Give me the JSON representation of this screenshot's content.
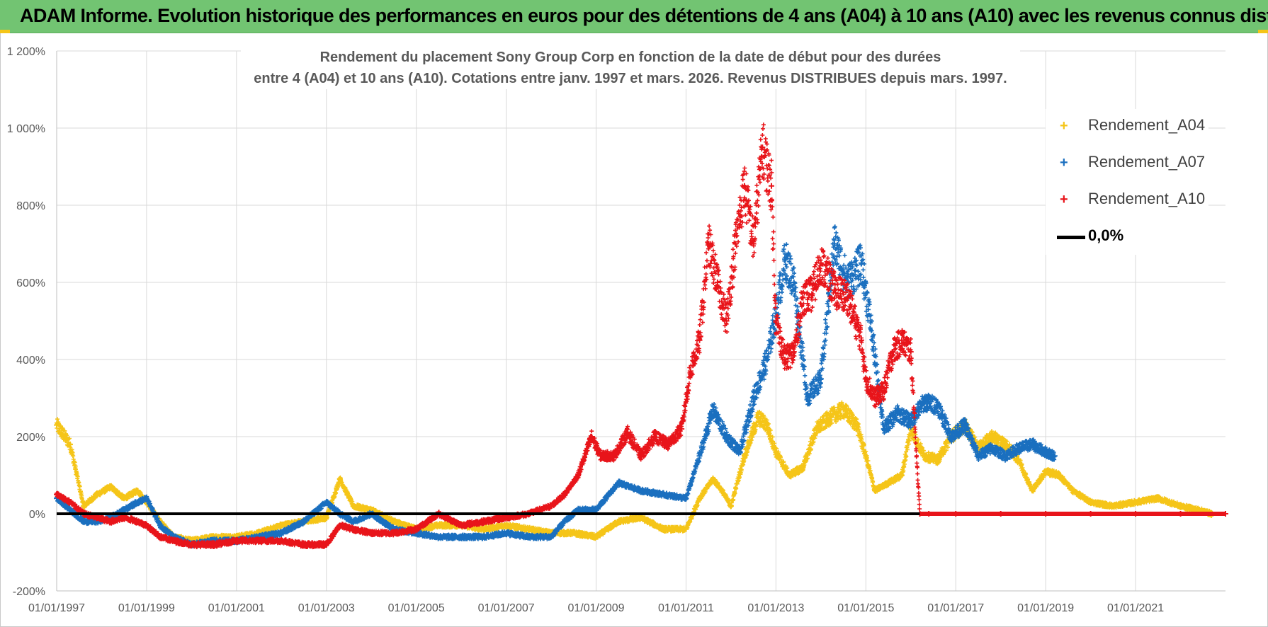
{
  "banner": {
    "title": "ADAM Informe. Evolution historique des performances en euros pour des détentions de 4 ans (A04) à 10 ans (A10) avec les revenus connus distribués",
    "color": "#72c472"
  },
  "chart_data": {
    "type": "scatter",
    "title_line1": "Rendement du placement Sony Group Corp en fonction de la date de début pour des durées",
    "title_line2": "entre 4 (A04) et 10 ans (A10).  Cotations entre janv. 1997 et mars. 2026. Revenus DISTRIBUES depuis mars. 1997.",
    "xlabel": "",
    "ylabel": "",
    "xlim": [
      1997.0,
      2023.0
    ],
    "ylim": [
      -200,
      1200
    ],
    "y_ticks": [
      -200,
      0,
      200,
      400,
      600,
      800,
      1000,
      1200
    ],
    "y_tick_labels": [
      "-200%",
      "0%",
      "200%",
      "400%",
      "600%",
      "800%",
      "1 000%",
      "1 200%"
    ],
    "x_ticks": [
      1997,
      1999,
      2001,
      2003,
      2005,
      2007,
      2009,
      2011,
      2013,
      2015,
      2017,
      2019,
      2021
    ],
    "x_tick_labels": [
      "01/01/1997",
      "01/01/1999",
      "01/01/2001",
      "01/01/2003",
      "01/01/2005",
      "01/01/2007",
      "01/01/2009",
      "01/01/2011",
      "01/01/2013",
      "01/01/2015",
      "01/01/2017",
      "01/01/2019",
      "01/01/2021"
    ],
    "grid": true,
    "legend_position": "top-right",
    "series": [
      {
        "name": "Rendement_A04",
        "color": "#f5c518",
        "marker": "+",
        "x": [
          1997.0,
          1997.3,
          1997.6,
          1997.9,
          1998.2,
          1998.5,
          1998.8,
          1999.0,
          1999.3,
          1999.6,
          2000.0,
          2000.5,
          2001.0,
          2001.5,
          2002.0,
          2002.5,
          2003.0,
          2003.3,
          2003.6,
          2004.0,
          2004.5,
          2005.0,
          2005.5,
          2006.0,
          2006.5,
          2007.0,
          2007.5,
          2008.0,
          2008.5,
          2009.0,
          2009.5,
          2010.0,
          2010.5,
          2011.0,
          2011.3,
          2011.6,
          2011.8,
          2012.0,
          2012.3,
          2012.6,
          2012.8,
          2013.0,
          2013.3,
          2013.6,
          2013.9,
          2014.2,
          2014.5,
          2014.8,
          2015.0,
          2015.2,
          2015.5,
          2015.8,
          2016.0,
          2016.3,
          2016.6,
          2016.9,
          2017.2,
          2017.5,
          2017.8,
          2018.1,
          2018.4,
          2018.7,
          2019.0,
          2019.3,
          2019.6,
          2020.0,
          2020.5,
          2021.0,
          2021.5,
          2022.0,
          2022.4,
          2022.7,
          2023.0
        ],
        "values": [
          230,
          180,
          20,
          50,
          70,
          40,
          60,
          30,
          -20,
          -60,
          -70,
          -60,
          -60,
          -50,
          -30,
          -20,
          -10,
          90,
          20,
          10,
          -20,
          -40,
          -30,
          -30,
          -40,
          -30,
          -40,
          -50,
          -50,
          -60,
          -20,
          -10,
          -40,
          -40,
          40,
          90,
          60,
          20,
          150,
          250,
          230,
          160,
          100,
          120,
          220,
          250,
          270,
          230,
          150,
          60,
          80,
          100,
          220,
          150,
          140,
          200,
          230,
          170,
          200,
          180,
          140,
          60,
          110,
          100,
          60,
          30,
          20,
          30,
          40,
          20,
          10,
          0,
          0
        ]
      },
      {
        "name": "Rendement_A07",
        "color": "#1a6fbf",
        "marker": "+",
        "x": [
          1997.0,
          1997.3,
          1997.6,
          1997.9,
          1998.2,
          1998.5,
          1998.8,
          1999.0,
          1999.3,
          1999.6,
          2000.0,
          2000.5,
          2001.0,
          2001.5,
          2002.0,
          2002.5,
          2003.0,
          2003.3,
          2003.6,
          2004.0,
          2004.5,
          2005.0,
          2005.5,
          2006.0,
          2006.5,
          2007.0,
          2007.5,
          2008.0,
          2008.3,
          2008.6,
          2009.0,
          2009.5,
          2010.0,
          2010.5,
          2011.0,
          2011.3,
          2011.6,
          2011.9,
          2012.2,
          2012.5,
          2012.8,
          2013.0,
          2013.2,
          2013.4,
          2013.7,
          2014.0,
          2014.3,
          2014.6,
          2014.9,
          2015.1,
          2015.4,
          2015.7,
          2016.0,
          2016.3,
          2016.6,
          2016.9,
          2017.2,
          2017.5,
          2017.8,
          2018.1,
          2018.4,
          2018.7,
          2019.0,
          2019.2
        ],
        "values": [
          40,
          10,
          -20,
          -20,
          -10,
          10,
          30,
          40,
          -30,
          -60,
          -80,
          -70,
          -70,
          -60,
          -50,
          -20,
          30,
          0,
          -20,
          0,
          -40,
          -50,
          -60,
          -60,
          -60,
          -50,
          -60,
          -60,
          -20,
          10,
          10,
          80,
          60,
          50,
          40,
          150,
          270,
          200,
          160,
          300,
          400,
          520,
          660,
          600,
          300,
          350,
          700,
          600,
          650,
          500,
          220,
          260,
          240,
          290,
          280,
          200,
          230,
          150,
          170,
          150,
          170,
          180,
          160,
          150
        ]
      },
      {
        "name": "Rendement_A10",
        "color": "#e8141a",
        "marker": "+",
        "x": [
          1997.0,
          1997.3,
          1997.6,
          1997.9,
          1998.2,
          1998.5,
          1998.8,
          1999.0,
          1999.3,
          1999.6,
          2000.0,
          2000.5,
          2001.0,
          2001.5,
          2002.0,
          2002.5,
          2003.0,
          2003.3,
          2003.6,
          2004.0,
          2004.5,
          2005.0,
          2005.5,
          2006.0,
          2006.5,
          2007.0,
          2007.5,
          2008.0,
          2008.3,
          2008.6,
          2008.9,
          2009.1,
          2009.4,
          2009.7,
          2010.0,
          2010.3,
          2010.6,
          2010.9,
          2011.1,
          2011.3,
          2011.5,
          2011.7,
          2011.9,
          2012.1,
          2012.3,
          2012.5,
          2012.7,
          2012.9,
          2013.0,
          2013.2,
          2013.4,
          2013.6,
          2013.8,
          2014.0,
          2014.3,
          2014.6,
          2014.9,
          2015.0,
          2015.2,
          2015.4,
          2015.6,
          2015.8,
          2016.0,
          2016.2,
          2016.4,
          2017.0,
          2018.0,
          2019.0,
          2020.0,
          2021.0,
          2022.0,
          2023.0
        ],
        "values": [
          50,
          30,
          0,
          -10,
          -20,
          -10,
          -20,
          -30,
          -60,
          -70,
          -80,
          -80,
          -70,
          -70,
          -70,
          -80,
          -80,
          -30,
          -40,
          -50,
          -50,
          -40,
          0,
          -30,
          -20,
          -10,
          0,
          20,
          50,
          100,
          200,
          150,
          150,
          210,
          150,
          200,
          180,
          220,
          370,
          450,
          700,
          600,
          500,
          700,
          850,
          700,
          950,
          850,
          500,
          400,
          420,
          560,
          570,
          650,
          580,
          560,
          450,
          350,
          300,
          320,
          420,
          450,
          420,
          0,
          0,
          0,
          0,
          0,
          0,
          0,
          0,
          0
        ]
      },
      {
        "name": "0,0%",
        "color": "#000000",
        "marker": "line",
        "x": [
          1997.0,
          2016.2
        ],
        "values": [
          0,
          0
        ]
      }
    ]
  }
}
